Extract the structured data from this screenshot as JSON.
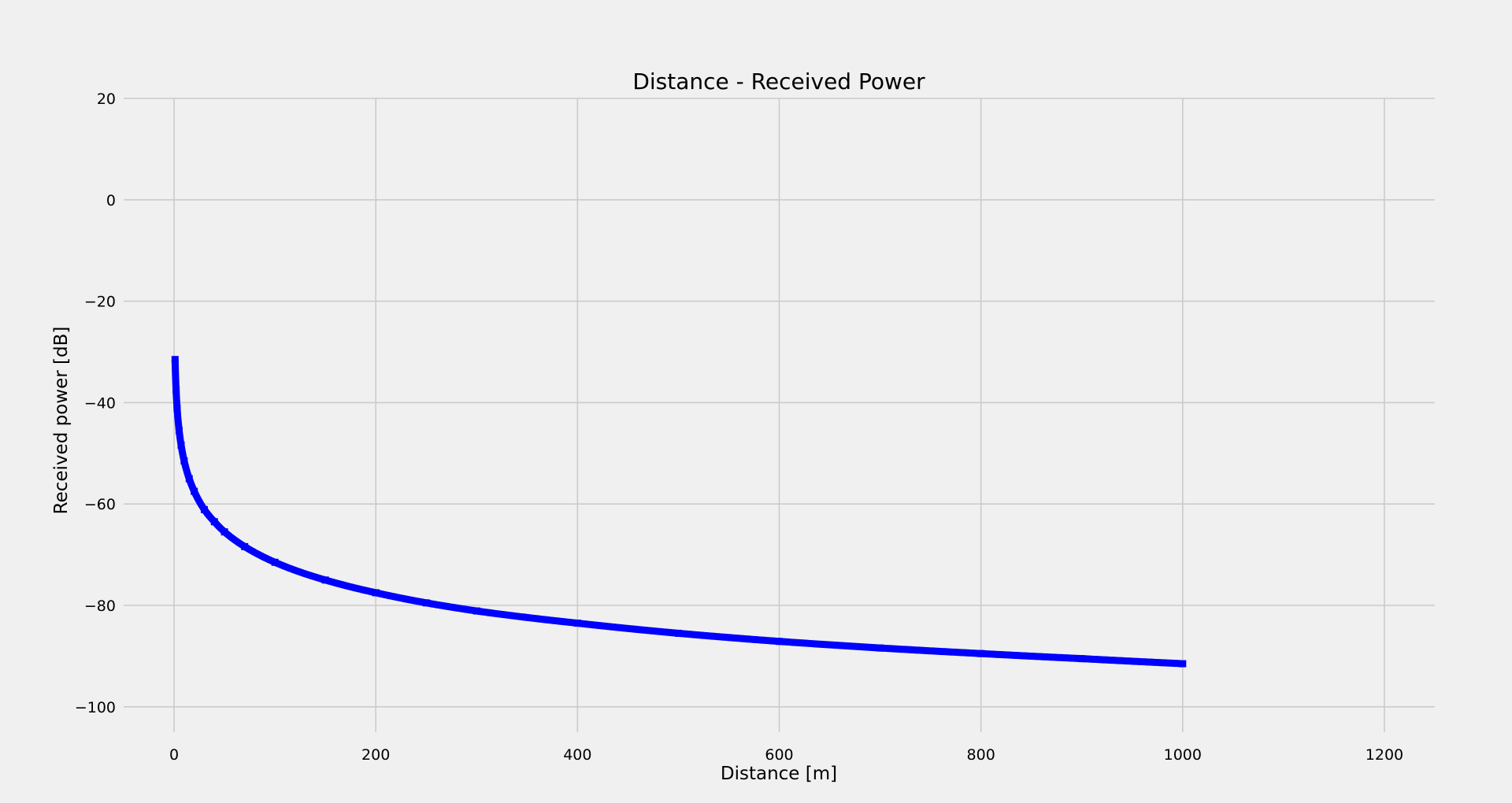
{
  "chart_data": {
    "type": "line",
    "title": "Distance - Received Power",
    "xlabel": "Distance [m]",
    "ylabel": "Received power [dB]",
    "xlim": [
      -50,
      1250
    ],
    "ylim": [
      -105,
      20
    ],
    "xticks": [
      0,
      200,
      400,
      600,
      800,
      1000,
      1200
    ],
    "yticks": [
      20,
      0,
      -20,
      -40,
      -60,
      -80,
      -100
    ],
    "xtick_labels": [
      "0",
      "200",
      "400",
      "600",
      "800",
      "1000",
      "1200"
    ],
    "ytick_labels": [
      "20",
      "0",
      "−20",
      "−40",
      "−60",
      "−80",
      "−100"
    ],
    "grid": true,
    "legend": "none",
    "background_color": "#f0f0f0",
    "series": [
      {
        "color": "#0000ff",
        "marker": "square",
        "x": [
          1,
          2,
          3,
          5,
          7,
          10,
          15,
          20,
          30,
          40,
          50,
          70,
          100,
          150,
          200,
          250,
          300,
          400,
          500,
          600,
          700,
          800,
          900,
          1000
        ],
        "y": [
          -31.5,
          -37.5,
          -41.1,
          -45.5,
          -48.4,
          -51.5,
          -55.0,
          -57.5,
          -61.1,
          -63.5,
          -65.5,
          -68.4,
          -71.5,
          -75.0,
          -77.5,
          -79.5,
          -81.1,
          -83.5,
          -85.5,
          -87.1,
          -88.4,
          -89.5,
          -90.5,
          -91.5
        ]
      }
    ]
  }
}
